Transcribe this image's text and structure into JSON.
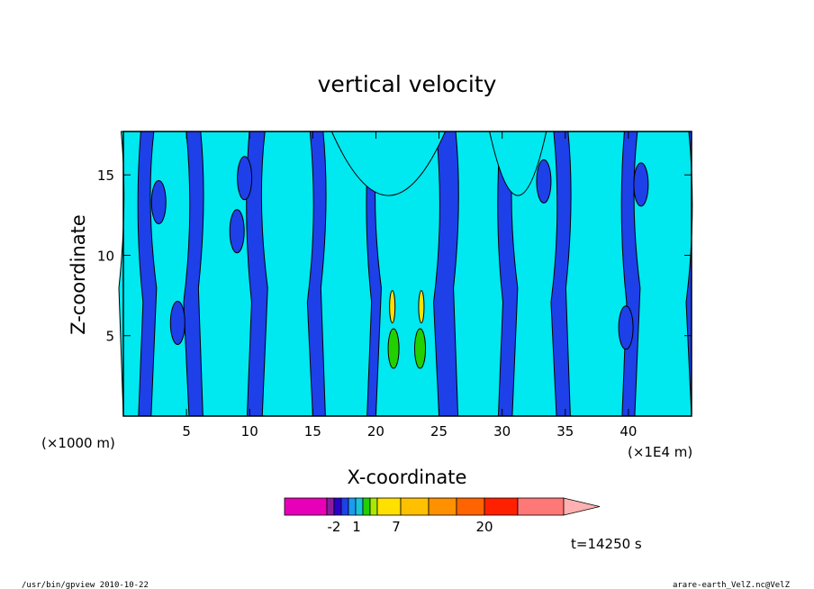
{
  "chart_data": {
    "type": "heatmap",
    "title": "vertical velocity",
    "xlabel": "X-coordinate",
    "ylabel": "Z-coordinate",
    "x_scale_note": "(×1E4 m)",
    "z_scale_note": "(×1000 m)",
    "xlim": [
      0,
      45
    ],
    "ylim": [
      0,
      17.7
    ],
    "x_ticks": [
      5,
      10,
      15,
      20,
      25,
      30,
      35,
      40
    ],
    "y_ticks": [
      5,
      10,
      15
    ],
    "colorbar": {
      "colors": [
        "#e800b8",
        "#8a1c9e",
        "#2a00c8",
        "#1e40e8",
        "#1a9cf0",
        "#18c4d8",
        "#22d000",
        "#a8e800",
        "#ffe000",
        "#ffc000",
        "#ff9000",
        "#ff6400",
        "#ff2000",
        "#ff7878",
        "#ffb0b0"
      ],
      "tick_labels": [
        "-2",
        "1",
        "7",
        "20"
      ]
    },
    "time_label": "t=14250 s",
    "field_bands": [
      {
        "level": "lt_-2",
        "color": "#1e40e8"
      },
      {
        "level": "-2_to_1",
        "color": "#00e8f0"
      },
      {
        "level": "1_to_7",
        "color": "#22d000"
      },
      {
        "level": "7_plus",
        "color": "#ffe000"
      }
    ],
    "band_columns_x": [
      [
        0.0,
        1.2
      ],
      [
        2.2,
        5.2
      ],
      [
        6.3,
        9.8
      ],
      [
        11.0,
        15.0
      ],
      [
        16.0,
        19.3
      ],
      [
        20.0,
        25.0
      ],
      [
        26.5,
        29.7
      ],
      [
        30.8,
        34.3
      ],
      [
        35.4,
        39.5
      ],
      [
        40.5,
        45.0
      ]
    ],
    "upper_cyan_regions_x": [
      [
        16.5,
        25.5
      ],
      [
        29.0,
        33.5
      ]
    ]
  },
  "footer": {
    "left": "/usr/bin/gpview   2010-10-22",
    "right": "arare-earth_VelZ.nc@VelZ"
  }
}
